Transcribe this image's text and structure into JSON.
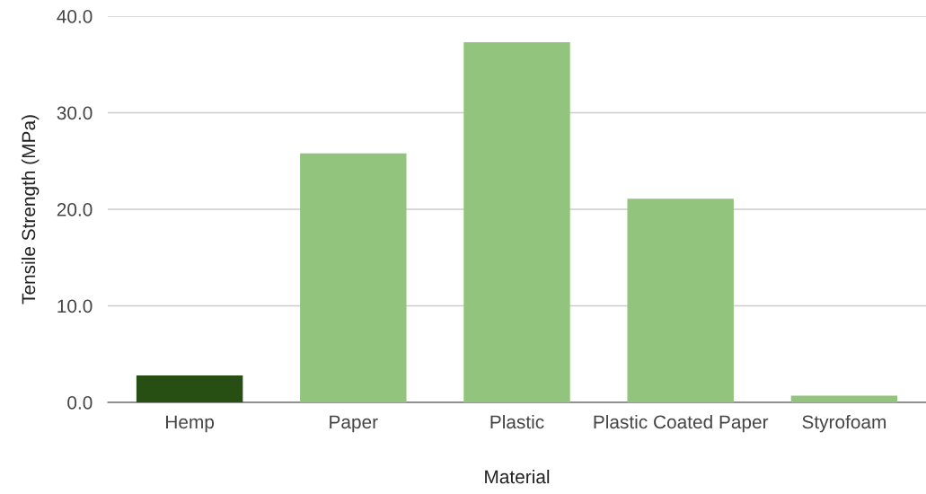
{
  "chart_data": {
    "type": "bar",
    "xlabel": "Material",
    "ylabel": "Tensile Strength (MPa)",
    "categories": [
      "Hemp",
      "Paper",
      "Plastic",
      "Plastic Coated Paper",
      "Styrofoam"
    ],
    "values": [
      2.8,
      25.8,
      37.3,
      21.1,
      0.7
    ],
    "colors": [
      "#274e13",
      "#93c47d",
      "#93c47d",
      "#93c47d",
      "#93c47d"
    ],
    "ylim": [
      0,
      40
    ],
    "yticks": [
      {
        "value": 0,
        "label": "0.0"
      },
      {
        "value": 10,
        "label": "10.0"
      },
      {
        "value": 20,
        "label": "20.0"
      },
      {
        "value": 30,
        "label": "30.0"
      },
      {
        "value": 40,
        "label": "40.0"
      }
    ],
    "grid": "y"
  }
}
